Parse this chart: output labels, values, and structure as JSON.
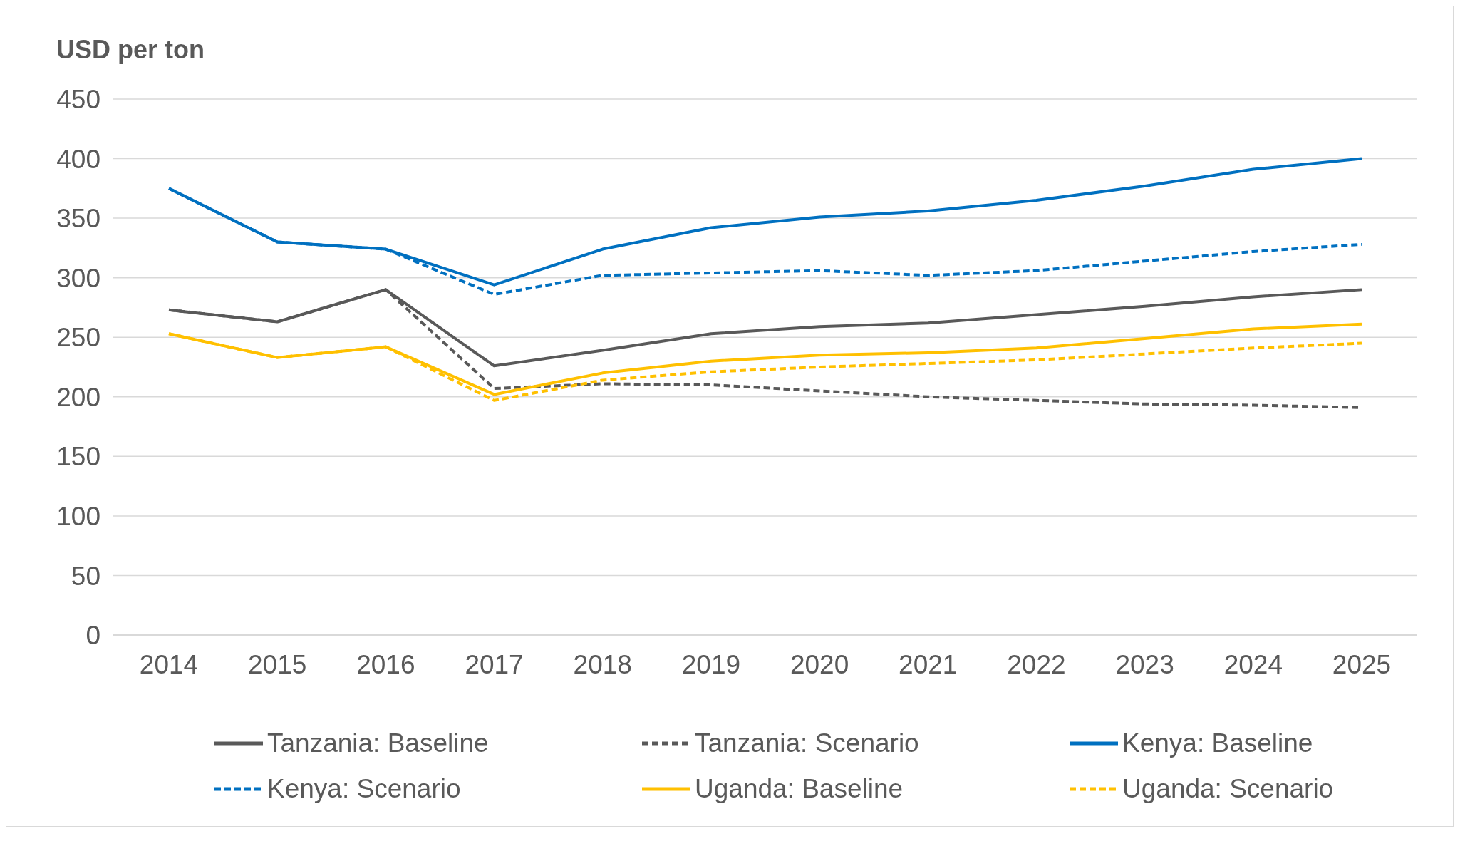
{
  "chart_data": {
    "type": "line",
    "ylabel": "USD per ton",
    "categories": [
      "2014",
      "2015",
      "2016",
      "2017",
      "2018",
      "2019",
      "2020",
      "2021",
      "2022",
      "2023",
      "2024",
      "2025"
    ],
    "series": [
      {
        "name": "Tanzania: Baseline",
        "color": "#595959",
        "line_style": "solid",
        "values": [
          273,
          263,
          290,
          226,
          239,
          253,
          259,
          262,
          269,
          276,
          284,
          290
        ]
      },
      {
        "name": "Tanzania: Scenario",
        "color": "#595959",
        "line_style": "dashed",
        "values": [
          273,
          263,
          290,
          207,
          211,
          210,
          205,
          200,
          197,
          194,
          193,
          191
        ]
      },
      {
        "name": "Kenya: Baseline",
        "color": "#0070c0",
        "line_style": "solid",
        "values": [
          375,
          330,
          324,
          294,
          324,
          342,
          351,
          356,
          365,
          377,
          391,
          400
        ]
      },
      {
        "name": "Kenya: Scenario",
        "color": "#0070c0",
        "line_style": "dashed",
        "values": [
          375,
          330,
          324,
          286,
          302,
          304,
          306,
          302,
          306,
          314,
          322,
          328
        ]
      },
      {
        "name": "Uganda: Baseline",
        "color": "#ffc000",
        "line_style": "solid",
        "values": [
          253,
          233,
          242,
          202,
          220,
          230,
          235,
          237,
          241,
          249,
          257,
          261
        ]
      },
      {
        "name": "Uganda: Scenario",
        "color": "#ffc000",
        "line_style": "dashed",
        "values": [
          253,
          233,
          242,
          197,
          214,
          221,
          225,
          228,
          231,
          236,
          241,
          245
        ]
      }
    ],
    "ylim": [
      0,
      450
    ],
    "yticks": [
      0,
      50,
      100,
      150,
      200,
      250,
      300,
      350,
      400,
      450
    ],
    "grid": "y",
    "legend": "bottom",
    "marker": "none"
  }
}
